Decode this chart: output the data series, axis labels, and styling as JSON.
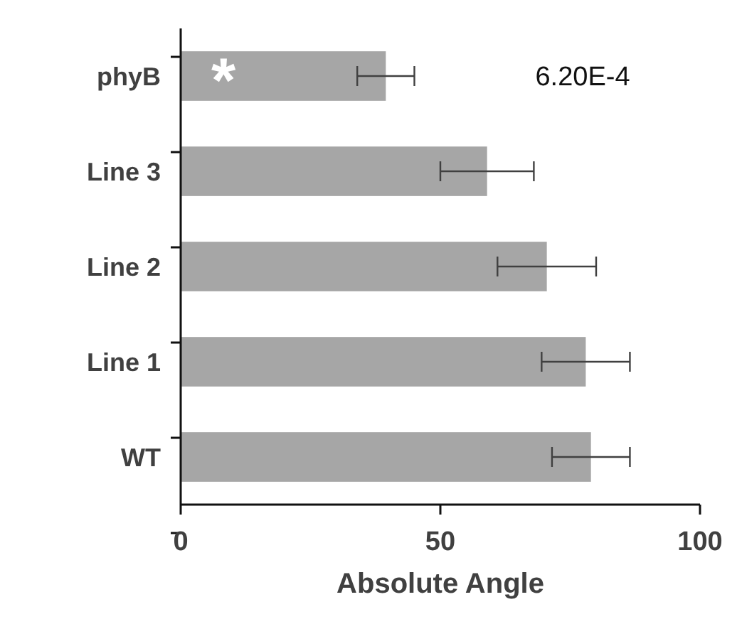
{
  "chart_data": {
    "type": "bar",
    "orientation": "horizontal",
    "xlabel": "Absolute Angle",
    "categories": [
      "phyB",
      "Line 3",
      "Line 2",
      "Line 1",
      "WT"
    ],
    "values": [
      39.5,
      59,
      70.5,
      78,
      79
    ],
    "errors": [
      5.5,
      9,
      9.5,
      8.5,
      7.5
    ],
    "color": "#a6a6a6",
    "xlim": [
      0,
      100
    ],
    "xticks": [
      0,
      50,
      100
    ],
    "grid": false,
    "annotations": [
      "*",
      "6.20E-4"
    ]
  }
}
